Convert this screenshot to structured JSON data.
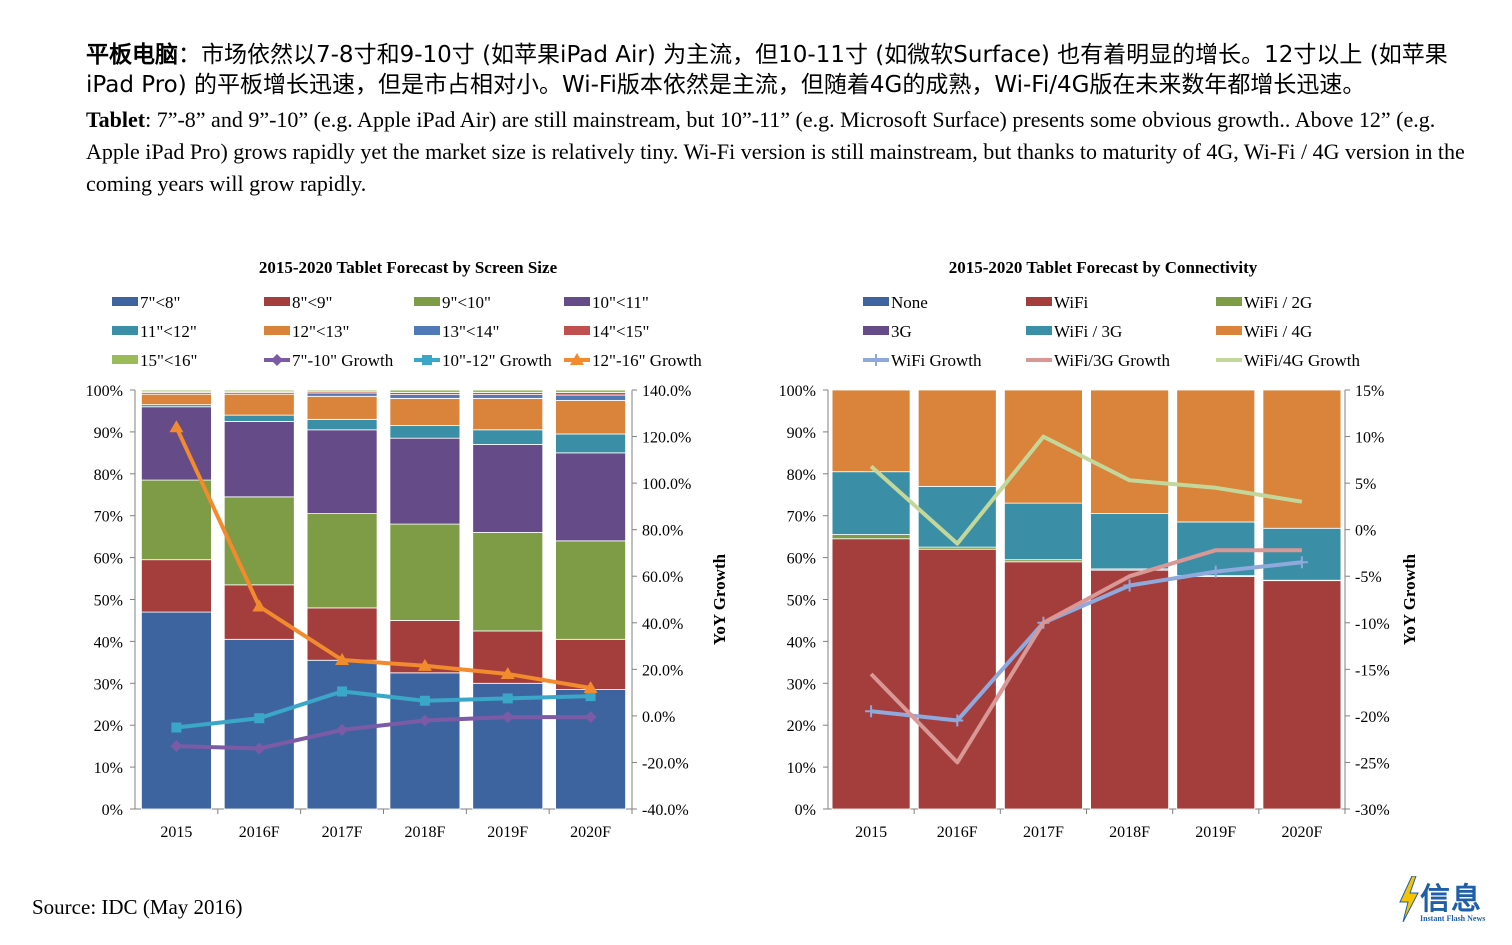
{
  "intro": {
    "zh_lead": "平板电脑",
    "zh_text": "：市场依然以7-8寸和9-10寸 (如苹果iPad Air) 为主流，但10-11寸 (如微软Surface) 也有着明显的增长。12寸以上 (如苹果iPad Pro) 的平板增长迅速，但是市占相对小。Wi-Fi版本依然是主流，但随着4G的成熟，Wi-Fi/4G版在未来数年都增长迅速。",
    "en_lead": "Tablet",
    "en_text": ": 7”-8” and 9”-10” (e.g. Apple iPad Air) are still mainstream, but 10”-11” (e.g. Microsoft Surface) presents some obvious growth.. Above 12” (e.g. Apple iPad Pro) grows rapidly yet the market size is relatively tiny. Wi-Fi version is still mainstream, but thanks to maturity of 4G, Wi-Fi / 4G version in the coming years will grow rapidly."
  },
  "source": "Source: IDC (May 2016)",
  "logo": {
    "text": "信息",
    "subtext": "Instant Flash News",
    "color": "#1f5fa8",
    "bolt_color": "#f5c400"
  },
  "chart_data": [
    {
      "type": "bar",
      "stacked": true,
      "title": "2015-2020 Tablet Forecast by Screen Size",
      "categories": [
        "2015",
        "2016F",
        "2017F",
        "2018F",
        "2019F",
        "2020F"
      ],
      "ylim": [
        0,
        100
      ],
      "y_ticks": [
        "0%",
        "10%",
        "20%",
        "30%",
        "40%",
        "50%",
        "60%",
        "70%",
        "80%",
        "90%",
        "100%"
      ],
      "y2label": "YoY Growth",
      "y2lim": [
        -40,
        140
      ],
      "y2_ticks": [
        "-40.0%",
        "-20.0%",
        "0.0%",
        "20.0%",
        "40.0%",
        "60.0%",
        "80.0%",
        "100.0%",
        "120.0%",
        "140.0%"
      ],
      "legend_position": "top",
      "series": [
        {
          "name": "7\"<8\"",
          "color": "#3e64a0",
          "values": [
            47,
            40.5,
            35.5,
            32.5,
            30,
            28.5
          ]
        },
        {
          "name": "8\"<9\"",
          "color": "#a43e3c",
          "values": [
            12.5,
            13,
            12.5,
            12.5,
            12.5,
            12
          ]
        },
        {
          "name": "9\"<10\"",
          "color": "#7e9b45",
          "values": [
            19,
            21,
            22.5,
            23,
            23.5,
            23.5
          ]
        },
        {
          "name": "10\"<11\"",
          "color": "#654b88",
          "values": [
            17.5,
            18,
            20,
            20.5,
            21,
            21
          ]
        },
        {
          "name": "11\"<12\"",
          "color": "#3a8fa6",
          "values": [
            0.5,
            1.5,
            2.5,
            3,
            3.5,
            4.5
          ]
        },
        {
          "name": "12\"<13\"",
          "color": "#d9843a",
          "values": [
            2.5,
            5,
            5.5,
            6.5,
            7.5,
            8
          ]
        },
        {
          "name": "13\"<14\"",
          "color": "#5179b8",
          "values": [
            0.4,
            0.4,
            0.8,
            0.9,
            0.9,
            1.3
          ]
        },
        {
          "name": "14\"<15\"",
          "color": "#c0504d",
          "values": [
            0.3,
            0.3,
            0.4,
            0.5,
            0.5,
            0.6
          ]
        },
        {
          "name": "15\"<16\"",
          "color": "#9bbb59",
          "values": [
            0.3,
            0.3,
            0.3,
            0.6,
            0.6,
            0.6
          ]
        }
      ],
      "lines": [
        {
          "name": "7\"-10\" Growth",
          "color": "#7b5ba6",
          "marker": "diamond",
          "values": [
            -13,
            -14,
            -6,
            -2,
            -0.5,
            -0.5
          ]
        },
        {
          "name": "10\"-12\" Growth",
          "color": "#3aa6c8",
          "marker": "square",
          "values": [
            -5,
            -1,
            10.5,
            6.5,
            7.5,
            8.5
          ]
        },
        {
          "name": "12\"-16\" Growth",
          "color": "#f28a2e",
          "marker": "triangle",
          "values": [
            124,
            47,
            24,
            21.5,
            18,
            12
          ]
        }
      ]
    },
    {
      "type": "bar",
      "stacked": true,
      "title": "2015-2020 Tablet Forecast by Connectivity",
      "categories": [
        "2015",
        "2016F",
        "2017F",
        "2018F",
        "2019F",
        "2020F"
      ],
      "ylim": [
        0,
        100
      ],
      "y_ticks": [
        "0%",
        "10%",
        "20%",
        "30%",
        "40%",
        "50%",
        "60%",
        "70%",
        "80%",
        "90%",
        "100%"
      ],
      "y2label": "YoY Growth",
      "y2lim": [
        -30,
        15
      ],
      "y2_ticks": [
        "-30%",
        "-25%",
        "-20%",
        "-15%",
        "-10%",
        "-5%",
        "0%",
        "5%",
        "10%",
        "15%"
      ],
      "legend_position": "top",
      "series": [
        {
          "name": "None",
          "color": "#3e64a0",
          "values": [
            0,
            0,
            0,
            0,
            0,
            0
          ]
        },
        {
          "name": "WiFi",
          "color": "#a43e3c",
          "values": [
            64.5,
            62,
            59,
            57,
            55.5,
            54.5
          ]
        },
        {
          "name": "WiFi / 2G",
          "color": "#7e9b45",
          "values": [
            1,
            0.5,
            0.5,
            0.3,
            0.2,
            0.1
          ]
        },
        {
          "name": "3G",
          "color": "#654b88",
          "values": [
            0,
            0,
            0,
            0,
            0,
            0
          ]
        },
        {
          "name": "WiFi / 3G",
          "color": "#3a8fa6",
          "values": [
            15,
            14.5,
            13.5,
            13.2,
            12.8,
            12.4
          ]
        },
        {
          "name": "WiFi / 4G",
          "color": "#d9843a",
          "values": [
            19.5,
            23,
            27,
            29.5,
            31.5,
            33
          ]
        }
      ],
      "lines": [
        {
          "name": "WiFi Growth",
          "color": "#8fa9dc",
          "marker": "plus",
          "values": [
            -19.5,
            -20.5,
            -10,
            -6,
            -4.5,
            -3.5
          ]
        },
        {
          "name": "WiFi/3G Growth",
          "color": "#d99795",
          "marker": "none",
          "values": [
            -15.5,
            -25,
            -10,
            -5,
            -2.2,
            -2.2
          ]
        },
        {
          "name": "WiFi/4G Growth",
          "color": "#c4d79b",
          "marker": "none",
          "values": [
            6.8,
            -1.5,
            10,
            5.3,
            4.5,
            3
          ]
        }
      ]
    }
  ]
}
